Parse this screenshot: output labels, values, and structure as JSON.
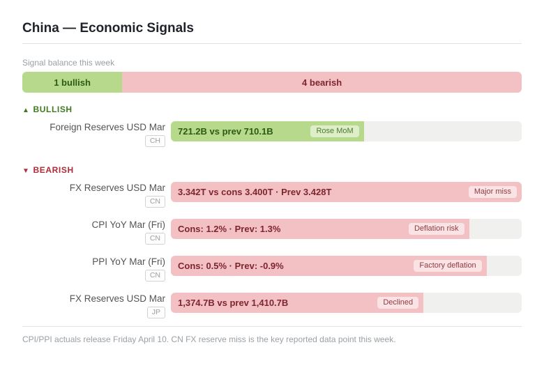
{
  "page": {
    "title": "China — Economic Signals",
    "subtitle": "Signal balance this week",
    "footer": "CPI/PPI actuals release Friday April 10. CN FX reserve miss is the key reported data point this week."
  },
  "balance": {
    "bullish_label": "1 bullish",
    "bearish_label": "4 bearish",
    "bullish_pct": 20,
    "bearish_pct": 80
  },
  "colors": {
    "bullish_fill": "#b7d98b",
    "bullish_strong": "#2d5a14",
    "bullish_header": "#3e7b1f",
    "bullish_tag_text": "#4a7a27",
    "bearish_fill": "#f3c1c4",
    "bearish_strong": "#7d262f",
    "bearish_header": "#b02a37",
    "bearish_tag_text": "#8f3a42",
    "track": "#f0f0ef"
  },
  "sections": [
    {
      "icon": "▲",
      "label": "BULLISH",
      "rows": [
        {
          "label": "Foreign Reserves USD Mar",
          "country": "CH",
          "value": "721.2B vs prev 710.1B",
          "tag": "Rose MoM",
          "fill_pct": 55
        }
      ]
    },
    {
      "icon": "▼",
      "label": "BEARISH",
      "rows": [
        {
          "label": "FX Reserves USD Mar",
          "country": "CN",
          "value": "3.342T vs cons 3.400T · Prev 3.428T",
          "tag": "Major miss",
          "fill_pct": 100
        },
        {
          "label": "CPI YoY Mar (Fri)",
          "country": "CN",
          "value": "Cons: 1.2% · Prev: 1.3%",
          "tag": "Deflation risk",
          "fill_pct": 85
        },
        {
          "label": "PPI YoY Mar (Fri)",
          "country": "CN",
          "value": "Cons: 0.5% · Prev: -0.9%",
          "tag": "Factory deflation",
          "fill_pct": 90
        },
        {
          "label": "FX Reserves USD Mar",
          "country": "JP",
          "value": "1,374.7B vs prev 1,410.7B",
          "tag": "Declined",
          "fill_pct": 72
        }
      ]
    }
  ]
}
